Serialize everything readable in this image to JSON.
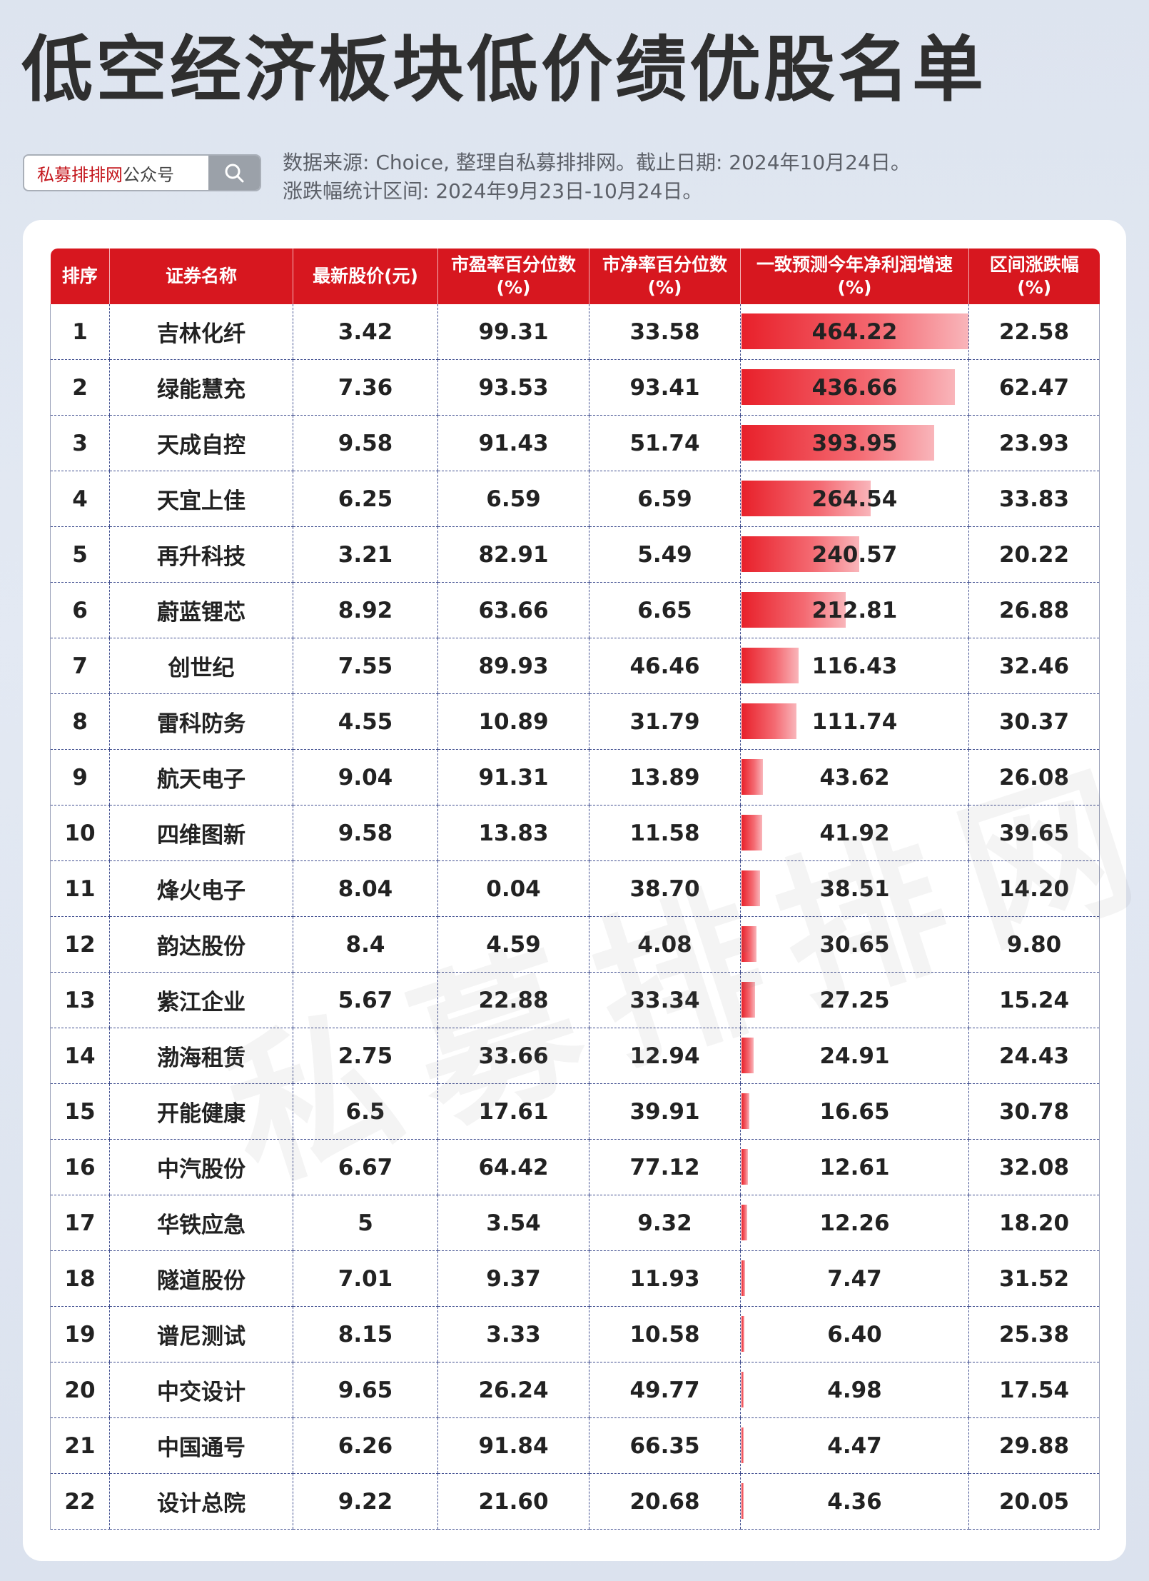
{
  "title": "低空经济板块低价绩优股名单",
  "search": {
    "brand": "私募排排网",
    "suffix": "公众号"
  },
  "source_text": "数据来源: Choice, 整理自私募排排网。截止日期: 2024年10月24日。涨跌幅统计区间: 2024年9月23日-10月24日。",
  "watermark": "私募排排网",
  "colors": {
    "header": "#d7171f",
    "bar": "#e8202a"
  },
  "growth_max": 464.22,
  "table": {
    "headers": [
      "排序",
      "证券名称",
      "最新股价(元)",
      "市盈率百分位数\n(%)",
      "市净率百分位数\n(%)",
      "一致预测今年净利润增速\n(%)",
      "区间涨跌幅\n(%)"
    ],
    "rows": [
      {
        "rank": "1",
        "name": "吉林化纤",
        "price": "3.42",
        "pe": "99.31",
        "pb": "33.58",
        "growth": "464.22",
        "change": "22.58"
      },
      {
        "rank": "2",
        "name": "绿能慧充",
        "price": "7.36",
        "pe": "93.53",
        "pb": "93.41",
        "growth": "436.66",
        "change": "62.47"
      },
      {
        "rank": "3",
        "name": "天成自控",
        "price": "9.58",
        "pe": "91.43",
        "pb": "51.74",
        "growth": "393.95",
        "change": "23.93"
      },
      {
        "rank": "4",
        "name": "天宜上佳",
        "price": "6.25",
        "pe": "6.59",
        "pb": "6.59",
        "growth": "264.54",
        "change": "33.83"
      },
      {
        "rank": "5",
        "name": "再升科技",
        "price": "3.21",
        "pe": "82.91",
        "pb": "5.49",
        "growth": "240.57",
        "change": "20.22"
      },
      {
        "rank": "6",
        "name": "蔚蓝锂芯",
        "price": "8.92",
        "pe": "63.66",
        "pb": "6.65",
        "growth": "212.81",
        "change": "26.88"
      },
      {
        "rank": "7",
        "name": "创世纪",
        "price": "7.55",
        "pe": "89.93",
        "pb": "46.46",
        "growth": "116.43",
        "change": "32.46"
      },
      {
        "rank": "8",
        "name": "雷科防务",
        "price": "4.55",
        "pe": "10.89",
        "pb": "31.79",
        "growth": "111.74",
        "change": "30.37"
      },
      {
        "rank": "9",
        "name": "航天电子",
        "price": "9.04",
        "pe": "91.31",
        "pb": "13.89",
        "growth": "43.62",
        "change": "26.08"
      },
      {
        "rank": "10",
        "name": "四维图新",
        "price": "9.58",
        "pe": "13.83",
        "pb": "11.58",
        "growth": "41.92",
        "change": "39.65"
      },
      {
        "rank": "11",
        "name": "烽火电子",
        "price": "8.04",
        "pe": "0.04",
        "pb": "38.70",
        "growth": "38.51",
        "change": "14.20"
      },
      {
        "rank": "12",
        "name": "韵达股份",
        "price": "8.4",
        "pe": "4.59",
        "pb": "4.08",
        "growth": "30.65",
        "change": "9.80"
      },
      {
        "rank": "13",
        "name": "紫江企业",
        "price": "5.67",
        "pe": "22.88",
        "pb": "33.34",
        "growth": "27.25",
        "change": "15.24"
      },
      {
        "rank": "14",
        "name": "渤海租赁",
        "price": "2.75",
        "pe": "33.66",
        "pb": "12.94",
        "growth": "24.91",
        "change": "24.43"
      },
      {
        "rank": "15",
        "name": "开能健康",
        "price": "6.5",
        "pe": "17.61",
        "pb": "39.91",
        "growth": "16.65",
        "change": "30.78"
      },
      {
        "rank": "16",
        "name": "中汽股份",
        "price": "6.67",
        "pe": "64.42",
        "pb": "77.12",
        "growth": "12.61",
        "change": "32.08"
      },
      {
        "rank": "17",
        "name": "华铁应急",
        "price": "5",
        "pe": "3.54",
        "pb": "9.32",
        "growth": "12.26",
        "change": "18.20"
      },
      {
        "rank": "18",
        "name": "隧道股份",
        "price": "7.01",
        "pe": "9.37",
        "pb": "11.93",
        "growth": "7.47",
        "change": "31.52"
      },
      {
        "rank": "19",
        "name": "谱尼测试",
        "price": "8.15",
        "pe": "3.33",
        "pb": "10.58",
        "growth": "6.40",
        "change": "25.38"
      },
      {
        "rank": "20",
        "name": "中交设计",
        "price": "9.65",
        "pe": "26.24",
        "pb": "49.77",
        "growth": "4.98",
        "change": "17.54"
      },
      {
        "rank": "21",
        "name": "中国通号",
        "price": "6.26",
        "pe": "91.84",
        "pb": "66.35",
        "growth": "4.47",
        "change": "29.88"
      },
      {
        "rank": "22",
        "name": "设计总院",
        "price": "9.22",
        "pe": "21.60",
        "pb": "20.68",
        "growth": "4.36",
        "change": "20.05"
      }
    ]
  }
}
